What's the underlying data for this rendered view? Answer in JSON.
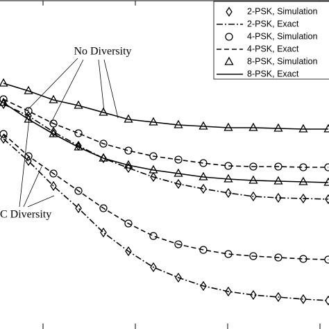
{
  "chart_data": {
    "type": "line",
    "annotations": [
      "No Diversity",
      "C Diversity"
    ],
    "x": [
      0,
      1,
      2,
      3,
      4,
      5,
      6,
      7,
      8,
      9,
      10,
      11,
      12,
      13
    ],
    "xlim": [
      -0.14,
      13.03
    ],
    "ylim": [
      0,
      474
    ],
    "legend_position": "upper right",
    "series": [
      {
        "name": "2-PSK, Simulation",
        "color": "#000000",
        "marker": "diamond",
        "values": [
          [
            324,
            307,
            284,
            264,
            246,
            232,
            219,
            209,
            202,
            196,
            191,
            189,
            188,
            187
          ],
          [
            274,
            242,
            206,
            174,
            139,
            112,
            89,
            74,
            62,
            54,
            49,
            46,
            43,
            41
          ]
        ]
      },
      {
        "name": "2-PSK, Exact",
        "color": "#000000",
        "dash": "9 3 2 3",
        "values": [
          [
            324,
            307,
            284,
            264,
            246,
            232,
            219,
            209,
            202,
            196,
            191,
            189,
            188,
            187
          ],
          [
            274,
            242,
            206,
            174,
            139,
            112,
            89,
            74,
            62,
            54,
            49,
            46,
            43,
            41
          ]
        ]
      },
      {
        "name": "4-PSK, Simulation",
        "color": "#000000",
        "marker": "circle",
        "values": [
          [
            331,
            314,
            296,
            282,
            267,
            257,
            249,
            244,
            239,
            235,
            234,
            234,
            233,
            233
          ],
          [
            281,
            249,
            224,
            199,
            174,
            152,
            134,
            122,
            114,
            108,
            105,
            103,
            101,
            100
          ]
        ]
      },
      {
        "name": "4-PSK, Exact",
        "color": "#000000",
        "dash": "7 4",
        "values": [
          [
            331,
            314,
            296,
            282,
            267,
            257,
            249,
            244,
            239,
            235,
            234,
            234,
            233,
            233
          ],
          [
            281,
            249,
            224,
            199,
            174,
            152,
            134,
            122,
            114,
            108,
            105,
            103,
            101,
            100
          ]
        ]
      },
      {
        "name": "8-PSK, Simulation",
        "color": "#000000",
        "marker": "triangle",
        "values": [
          [
            354,
            343,
            330,
            322,
            312,
            302,
            298,
            294,
            292,
            290,
            290,
            289,
            288,
            288
          ],
          [
            326,
            302,
            281,
            262,
            246,
            236,
            229,
            224,
            219,
            216,
            214,
            213,
            212,
            211
          ]
        ]
      },
      {
        "name": "8-PSK, Exact",
        "color": "#000000",
        "dash": "",
        "values": [
          [
            354,
            343,
            330,
            322,
            312,
            302,
            298,
            294,
            292,
            290,
            290,
            289,
            288,
            288
          ],
          [
            326,
            302,
            281,
            262,
            246,
            236,
            229,
            224,
            219,
            216,
            214,
            213,
            212,
            211
          ]
        ]
      }
    ]
  }
}
